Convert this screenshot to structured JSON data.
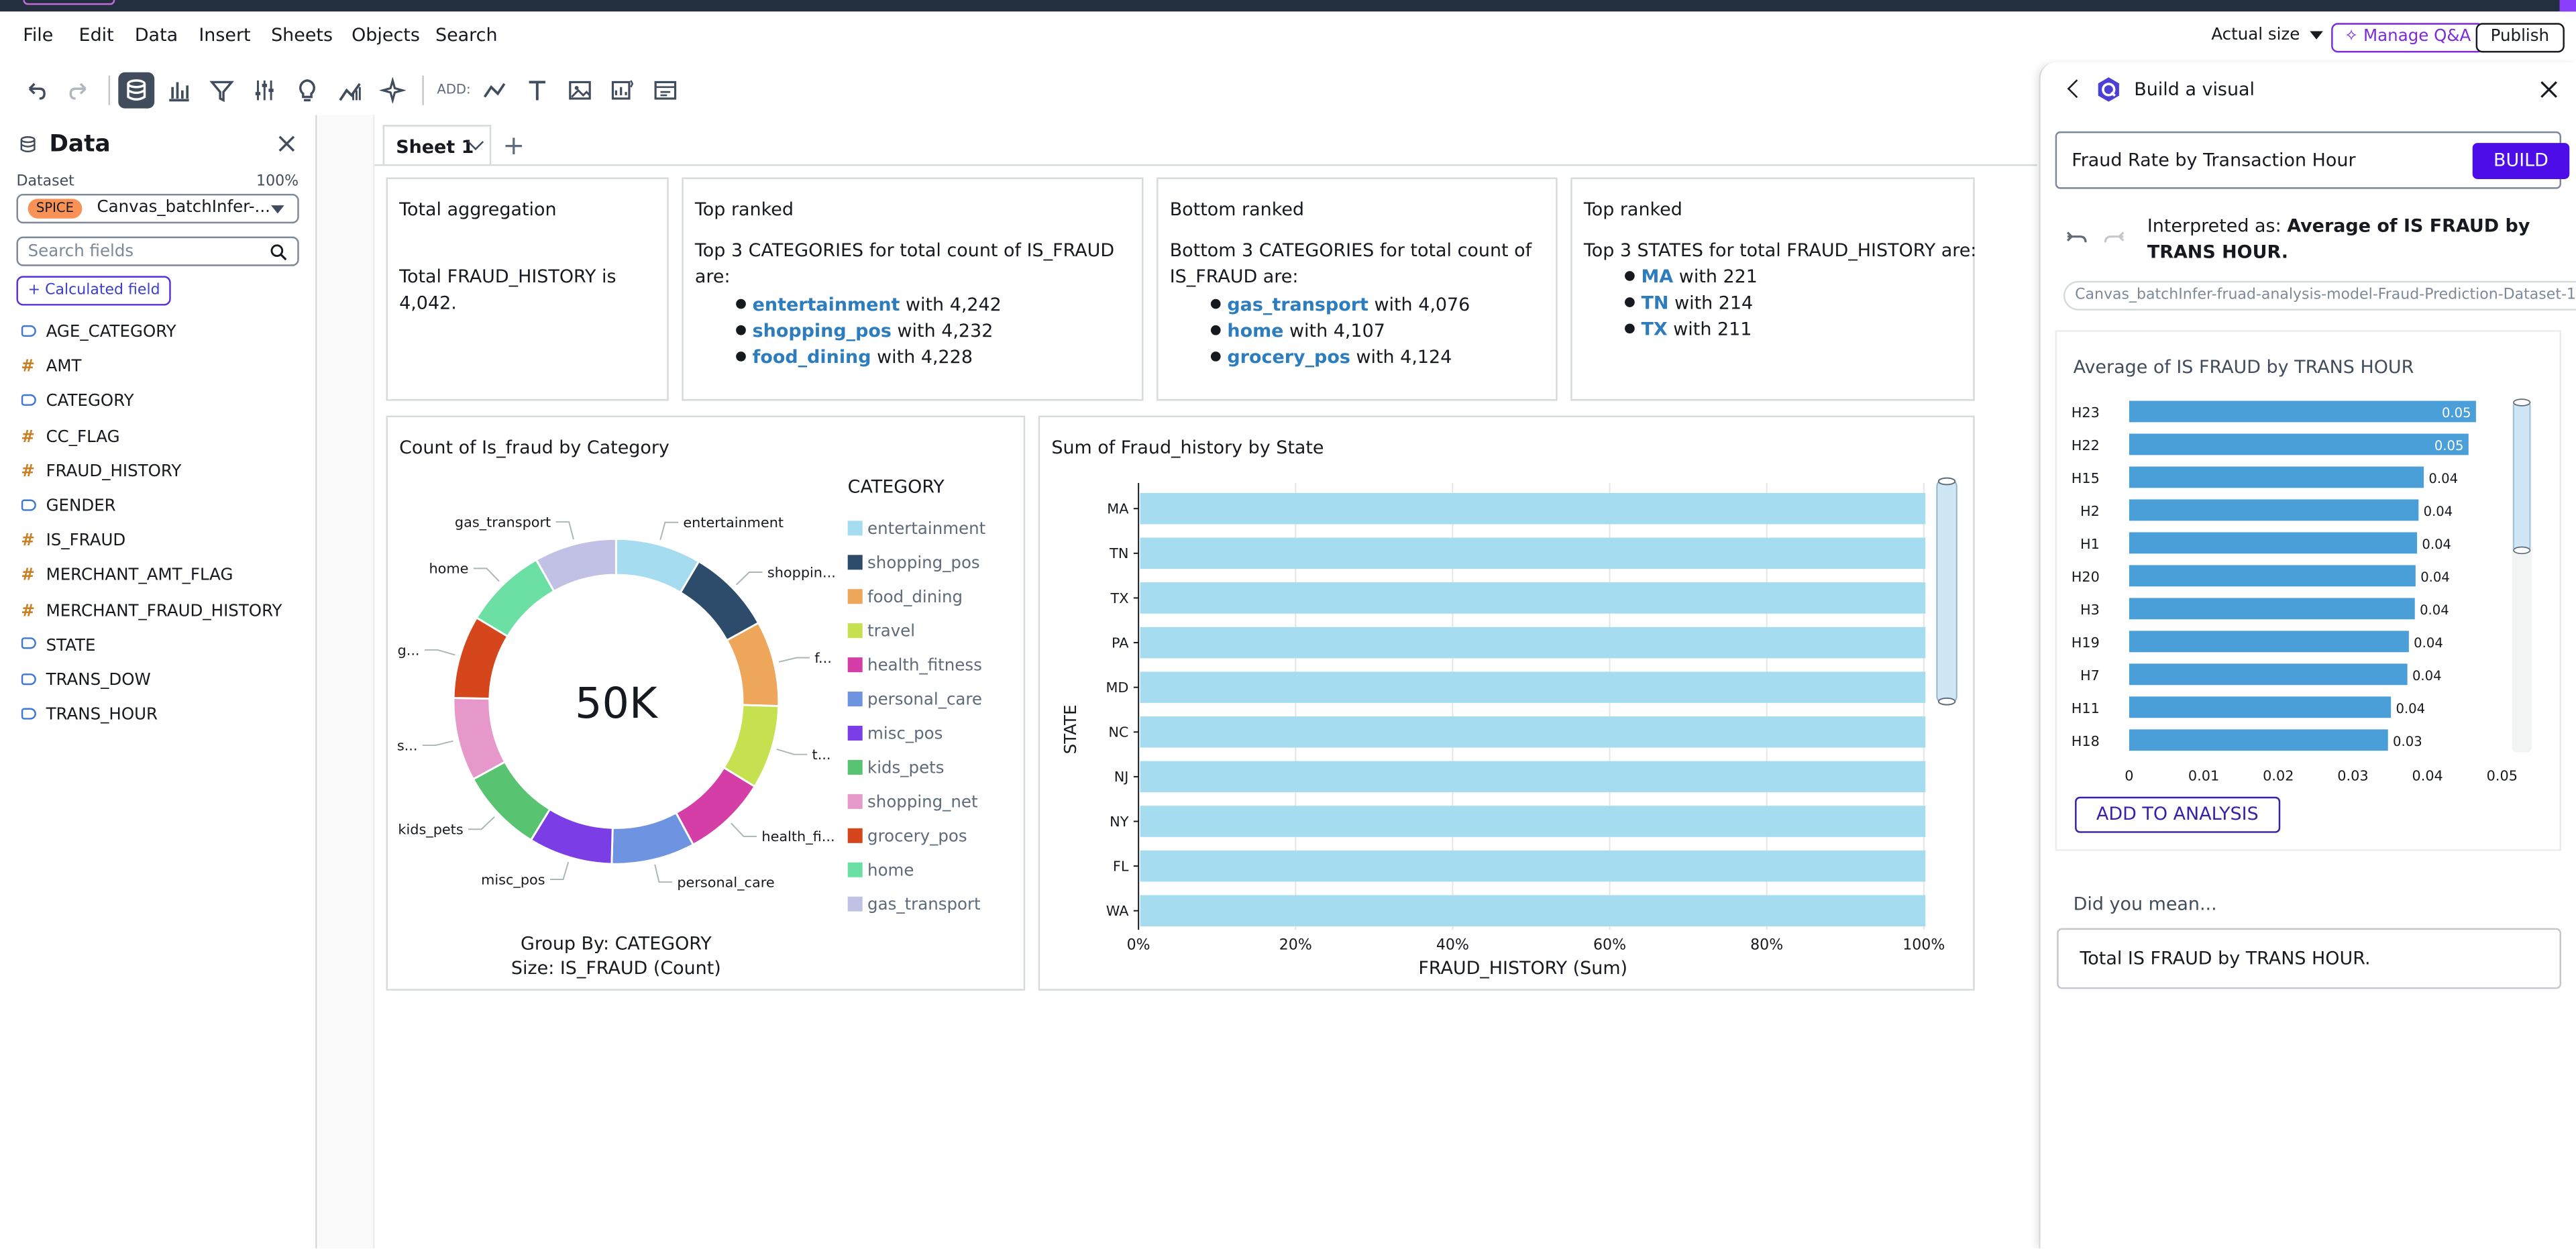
{
  "menu": {
    "items": [
      "File",
      "Edit",
      "Data",
      "Insert",
      "Sheets",
      "Objects",
      "Search"
    ],
    "actual_size": "Actual size",
    "manage_qa": "Manage Q&A",
    "publish": "Publish"
  },
  "toolbar": {
    "add_label": "ADD:",
    "icons": [
      "undo-icon",
      "redo-icon",
      "database-icon",
      "bar-chart-icon",
      "filter-icon",
      "sliders-icon",
      "lightbulb-icon",
      "forecast-icon",
      "sparkle-icon",
      "line-chart-icon",
      "text-icon",
      "image-icon",
      "insight-icon",
      "layout-icon"
    ]
  },
  "data_panel": {
    "title": "Data",
    "dataset_label": "Dataset",
    "dataset_pct": "100%",
    "spice_badge": "SPICE",
    "dataset_name": "Canvas_batchInfer-...",
    "search_placeholder": "Search fields",
    "calc_field": "+ Calculated field",
    "fields": [
      {
        "name": "AGE_CATEGORY",
        "type": "dimension"
      },
      {
        "name": "AMT",
        "type": "measure"
      },
      {
        "name": "CATEGORY",
        "type": "dimension"
      },
      {
        "name": "CC_FLAG",
        "type": "measure"
      },
      {
        "name": "FRAUD_HISTORY",
        "type": "measure"
      },
      {
        "name": "GENDER",
        "type": "dimension"
      },
      {
        "name": "IS_FRAUD",
        "type": "measure"
      },
      {
        "name": "MERCHANT_AMT_FLAG",
        "type": "measure"
      },
      {
        "name": "MERCHANT_FRAUD_HISTORY",
        "type": "measure"
      },
      {
        "name": "STATE",
        "type": "dimension"
      },
      {
        "name": "TRANS_DOW",
        "type": "dimension"
      },
      {
        "name": "TRANS_HOUR",
        "type": "dimension"
      }
    ]
  },
  "sheet": {
    "tab": "Sheet 1",
    "add": "+"
  },
  "insights": [
    {
      "title": "Total aggregation",
      "text": "Total FRAUD_HISTORY is 4,042.",
      "items": []
    },
    {
      "title": "Top ranked",
      "text": "Top 3 CATEGORIES for total count of IS_FRAUD are:",
      "items": [
        {
          "name": "entertainment",
          "value": "with 4,242"
        },
        {
          "name": "shopping_pos",
          "value": "with 4,232"
        },
        {
          "name": "food_dining",
          "value": "with 4,228"
        }
      ]
    },
    {
      "title": "Bottom ranked",
      "text": "Bottom 3 CATEGORIES for total count of IS_FRAUD are:",
      "items": [
        {
          "name": "gas_transport",
          "value": "with 4,076"
        },
        {
          "name": "home",
          "value": "with 4,107"
        },
        {
          "name": "grocery_pos",
          "value": "with 4,124"
        }
      ]
    },
    {
      "title": "Top ranked",
      "text": "Top 3 STATES for total FRAUD_HISTORY are:",
      "items": [
        {
          "name": "MA",
          "value": "with 221"
        },
        {
          "name": "TN",
          "value": "with 214"
        },
        {
          "name": "TX",
          "value": "with 211"
        }
      ]
    }
  ],
  "chart_data": [
    {
      "type": "pie",
      "title": "Count of Is_fraud by Category",
      "center_label": "50K",
      "legend_title": "CATEGORY",
      "legend_position": "right",
      "footer": [
        "Group By: CATEGORY",
        "Size: IS_FRAUD (Count)"
      ],
      "categories": [
        "entertainment",
        "shopping_pos",
        "food_dining",
        "travel",
        "health_fitness",
        "personal_care",
        "misc_pos",
        "kids_pets",
        "shopping_net",
        "grocery_pos",
        "home",
        "gas_transport"
      ],
      "outer_labels": [
        "entertainment",
        "shoppin...",
        "f...",
        "t...",
        "health_fi...",
        "personal_care",
        "misc_pos",
        "kids_pets",
        "s...",
        "g...",
        "home",
        "gas_transport"
      ],
      "values": [
        4242,
        4232,
        4228,
        4150,
        4180,
        4140,
        4160,
        4145,
        4130,
        4124,
        4107,
        4076
      ],
      "colors": [
        "#a6dcf0",
        "#2d4c6b",
        "#eda65a",
        "#c6e150",
        "#d53ea7",
        "#6e93e0",
        "#7b3ee6",
        "#58c472",
        "#e598c9",
        "#d5461d",
        "#6ce0a4",
        "#c0c1e4"
      ]
    },
    {
      "type": "bar",
      "orientation": "horizontal",
      "title": "Sum of Fraud_history by State",
      "ylabel": "STATE",
      "xlabel": "FRAUD_HISTORY (Sum)",
      "categories": [
        "MA",
        "TN",
        "TX",
        "PA",
        "MD",
        "NC",
        "NJ",
        "NY",
        "FL",
        "WA"
      ],
      "values": [
        100,
        100,
        100,
        100,
        100,
        100,
        100,
        100,
        100,
        100
      ],
      "x_ticks": [
        "0%",
        "20%",
        "40%",
        "60%",
        "80%",
        "100%"
      ],
      "xlim": [
        0,
        100
      ],
      "color": "#a6dcf0",
      "grid": true
    },
    {
      "type": "bar",
      "orientation": "horizontal",
      "title": "Average of IS FRAUD by TRANS HOUR",
      "categories": [
        "H23",
        "H22",
        "H15",
        "H2",
        "H1",
        "H20",
        "H3",
        "H19",
        "H7",
        "H11",
        "H18"
      ],
      "values": [
        0.0465,
        0.0455,
        0.0395,
        0.0388,
        0.0386,
        0.0384,
        0.0383,
        0.0375,
        0.0373,
        0.0351,
        0.0347
      ],
      "data_labels": [
        "0.05",
        "0.05",
        "0.04",
        "0.04",
        "0.04",
        "0.04",
        "0.04",
        "0.04",
        "0.04",
        "0.04",
        "0.03"
      ],
      "x_ticks": [
        "0",
        "0.01",
        "0.02",
        "0.03",
        "0.04",
        "0.05"
      ],
      "xlim": [
        0,
        0.05
      ],
      "color": "#4a9fd8",
      "grid": false
    }
  ],
  "build_visual": {
    "title": "Build a visual",
    "query": "Fraud Rate by Transaction Hour",
    "build": "BUILD",
    "interpreted_prefix": "Interpreted as:",
    "interpreted_value": "Average of IS FRAUD by TRANS HOUR.",
    "dataset": "Canvas_batchInfer-fruad-analysis-model-Fraud-Prediction-Dataset-1",
    "add_to_analysis": "ADD TO ANALYSIS",
    "did_you_mean": "Did you mean...",
    "suggestion": "Total IS FRAUD by TRANS HOUR."
  }
}
